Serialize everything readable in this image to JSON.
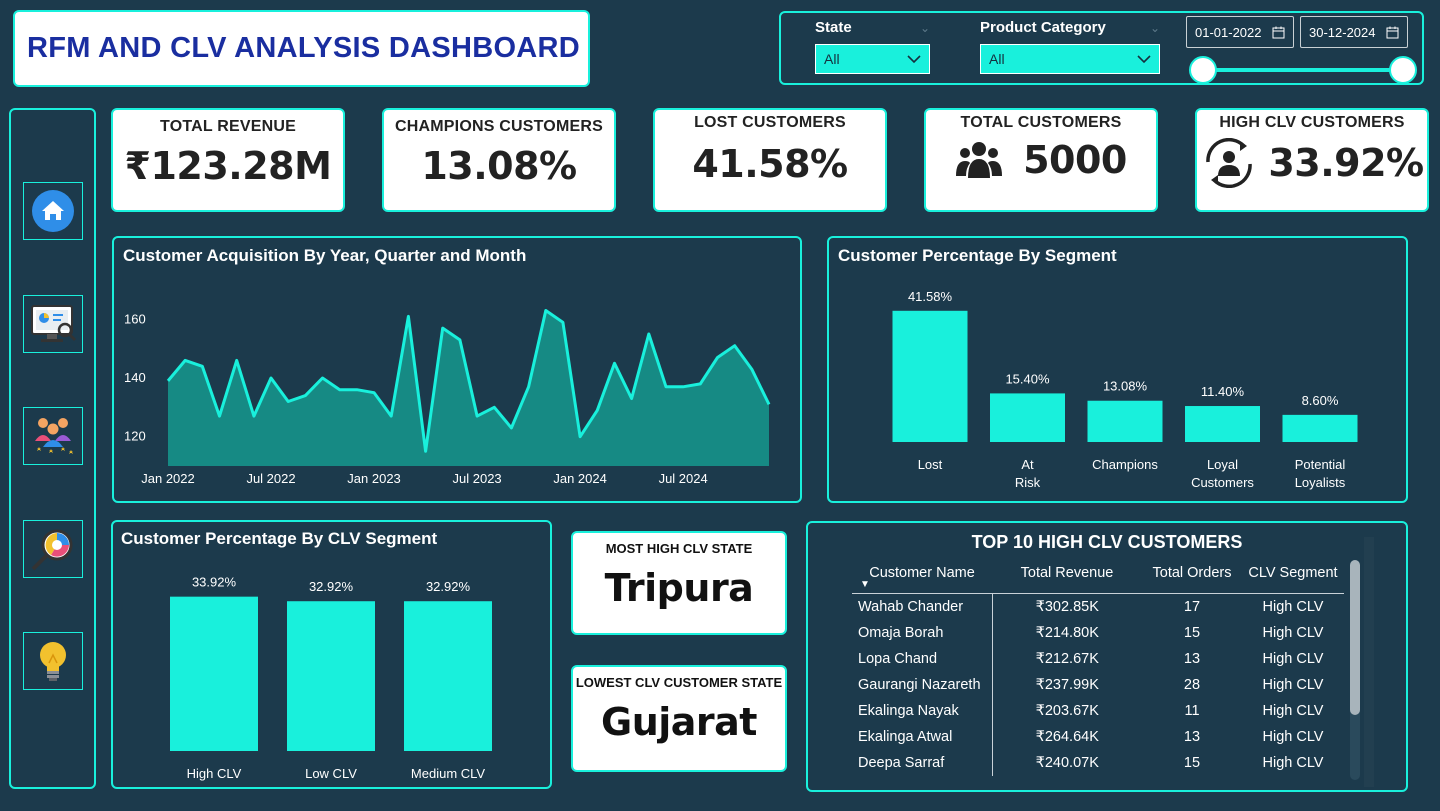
{
  "header": {
    "title": "RFM AND CLV ANALYSIS DASHBOARD"
  },
  "filters": {
    "state": {
      "label": "State",
      "value": "All"
    },
    "product_category": {
      "label": "Product Category",
      "value": "All"
    },
    "date_start": "01-01-2022",
    "date_end": "30-12-2024"
  },
  "nav": {
    "items": [
      {
        "icon": "home-icon"
      },
      {
        "icon": "analytics-monitor-icon"
      },
      {
        "icon": "customer-group-icon"
      },
      {
        "icon": "search-chart-icon"
      },
      {
        "icon": "lightbulb-icon"
      }
    ]
  },
  "kpis": {
    "total_revenue": {
      "label": "TOTAL REVENUE",
      "value": "₹123.28M"
    },
    "champions": {
      "label": "CHAMPIONS CUSTOMERS",
      "value": "13.08%"
    },
    "lost": {
      "label": "LOST CUSTOMERS",
      "value": "41.58%"
    },
    "total_customers": {
      "label": "TOTAL CUSTOMERS",
      "value": "5000",
      "icon": "users-icon"
    },
    "high_clv": {
      "label": "HIGH CLV CUSTOMERS",
      "value": "33.92%",
      "icon": "customer-cycle-icon"
    }
  },
  "acquisition_chart": {
    "title": "Customer Acquisition By Year, Quarter and Month"
  },
  "segment_chart": {
    "title": "Customer Percentage By Segment"
  },
  "clv_chart": {
    "title": "Customer Percentage By CLV Segment"
  },
  "most_high_clv_state": {
    "label": "MOST HIGH CLV STATE",
    "value": "Tripura"
  },
  "lowest_clv_state": {
    "label": "LOWEST CLV CUSTOMER STATE",
    "value": "Gujarat"
  },
  "top10": {
    "title": "TOP 10 HIGH CLV CUSTOMERS",
    "columns": [
      "Customer Name",
      "Total Revenue",
      "Total Orders",
      "CLV Segment"
    ],
    "rows": [
      [
        "Wahab Chander",
        "₹302.85K",
        "17",
        "High CLV"
      ],
      [
        "Omaja Borah",
        "₹214.80K",
        "15",
        "High CLV"
      ],
      [
        "Lopa Chand",
        "₹212.67K",
        "13",
        "High CLV"
      ],
      [
        "Gaurangi Nazareth",
        "₹237.99K",
        "28",
        "High CLV"
      ],
      [
        "Ekalinga Nayak",
        "₹203.67K",
        "11",
        "High CLV"
      ],
      [
        "Ekalinga Atwal",
        "₹264.64K",
        "13",
        "High CLV"
      ],
      [
        "Deepa Sarraf",
        "₹240.07K",
        "15",
        "High CLV"
      ]
    ]
  },
  "colors": {
    "accent": "#19f0dc",
    "background": "#1c3a4c",
    "area_fill": "#168a84",
    "title_blue": "#1a2ea0"
  },
  "chart_data": [
    {
      "type": "area",
      "title": "Customer Acquisition By Year, Quarter and Month",
      "x_ticks": [
        "Jan 2022",
        "Jul 2022",
        "Jan 2023",
        "Jul 2023",
        "Jan 2024",
        "Jul 2024"
      ],
      "y_ticks": [
        120,
        140,
        160
      ],
      "ylim": [
        110,
        170
      ],
      "x_start": "2022-01",
      "x_end": "2024-12",
      "values": [
        139,
        146,
        144,
        127,
        146,
        127,
        140,
        132,
        134,
        140,
        136,
        136,
        135,
        127,
        161,
        115,
        157,
        153,
        127,
        130,
        123,
        137,
        163,
        159,
        120,
        129,
        145,
        133,
        155,
        137,
        137,
        138,
        147,
        151,
        143,
        131
      ],
      "grid": false
    },
    {
      "type": "bar",
      "title": "Customer Percentage By Segment",
      "categories": [
        "Lost",
        "At Risk",
        "Champions",
        "Loyal Customers",
        "Potential Loyalists"
      ],
      "values": [
        41.58,
        15.4,
        13.08,
        11.4,
        8.6
      ],
      "labels": [
        "41.58%",
        "15.40%",
        "13.08%",
        "11.40%",
        "8.60%"
      ],
      "ylim": [
        0,
        45
      ]
    },
    {
      "type": "bar",
      "title": "Customer Percentage By CLV Segment",
      "categories": [
        "High CLV",
        "Low CLV",
        "Medium CLV"
      ],
      "values": [
        33.92,
        32.92,
        32.92
      ],
      "labels": [
        "33.92%",
        "32.92%",
        "32.92%"
      ],
      "ylim": [
        0,
        40
      ]
    }
  ]
}
